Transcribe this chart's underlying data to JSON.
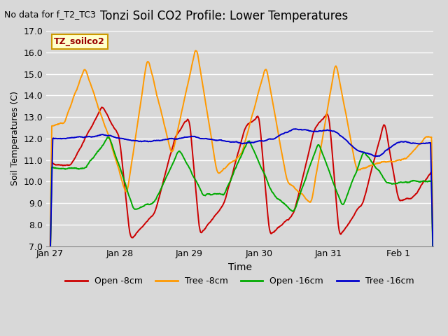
{
  "title": "Tonzi Soil CO2 Profile: Lower Temperatures",
  "subtitle": "No data for f_T2_TC3",
  "xlabel": "Time",
  "ylabel": "Soil Temperatures (C)",
  "ylim": [
    7.0,
    17.0
  ],
  "yticks": [
    7.0,
    8.0,
    9.0,
    10.0,
    11.0,
    12.0,
    13.0,
    14.0,
    15.0,
    16.0,
    17.0
  ],
  "xtick_labels": [
    "Jan 27",
    "Jan 28",
    "Jan 29",
    "Jan 30",
    "Jan 31",
    "Feb 1"
  ],
  "colors": {
    "open_8cm": "#cc0000",
    "tree_8cm": "#ff9900",
    "open_16cm": "#00aa00",
    "tree_16cm": "#0000cc"
  },
  "legend_labels": [
    "Open -8cm",
    "Tree -8cm",
    "Open -16cm",
    "Tree -16cm"
  ],
  "inset_label": "TZ_soilco2",
  "background_color": "#d8d8d8"
}
